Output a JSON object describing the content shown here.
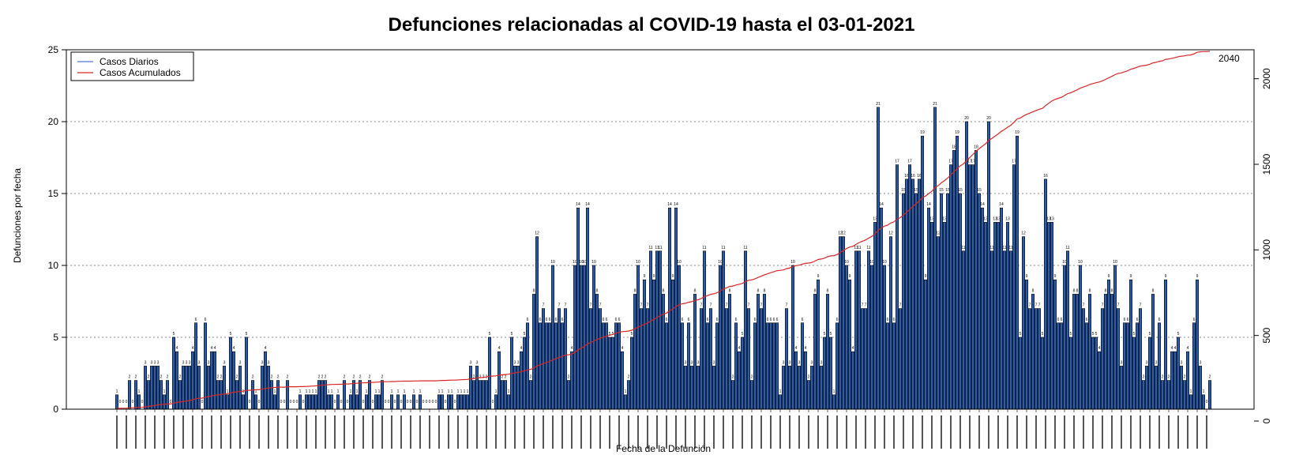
{
  "chart_data": {
    "type": "bar",
    "title": "Defunciones relacionadas al COVID-19 hasta el 03-01-2021",
    "xlabel": "Fecha de la Defunción",
    "ylabel": "Defunciones por fecha",
    "ylim": [
      0,
      25
    ],
    "yticks": [
      0,
      5,
      10,
      15,
      20,
      25
    ],
    "y2lim": [
      0,
      2100
    ],
    "y2ticks": [
      0,
      500,
      1000,
      1500,
      2000
    ],
    "grid": true,
    "legend": {
      "position": "top-left",
      "entries": [
        {
          "label": "Casos Diarios",
          "color": "#4f78d8"
        },
        {
          "label": "Casos Acumulados",
          "color": "#d62728"
        }
      ]
    },
    "cumulative_end_label": "2040",
    "x_labels_note": "dense tiny rotated date labels at every few bars",
    "series": [
      {
        "name": "Casos Diarios",
        "color": "#2d5ca8",
        "values": [
          1,
          0,
          0,
          0,
          2,
          0,
          2,
          1,
          0,
          3,
          2,
          3,
          3,
          3,
          2,
          1,
          2,
          0,
          5,
          4,
          2,
          3,
          3,
          3,
          4,
          6,
          3,
          0,
          6,
          3,
          4,
          4,
          2,
          2,
          3,
          1,
          5,
          4,
          2,
          3,
          1,
          5,
          0,
          2,
          1,
          0,
          3,
          4,
          3,
          2,
          1,
          2,
          0,
          0,
          2,
          0,
          0,
          0,
          1,
          0,
          1,
          1,
          1,
          1,
          2,
          2,
          2,
          1,
          1,
          0,
          1,
          0,
          2,
          0,
          1,
          2,
          1,
          2,
          0,
          1,
          2,
          0,
          1,
          1,
          2,
          0,
          0,
          1,
          0,
          1,
          0,
          1,
          0,
          0,
          1,
          0,
          1,
          0,
          0,
          0,
          0,
          0,
          1,
          1,
          0,
          1,
          1,
          0,
          1,
          1,
          1,
          1,
          3,
          2,
          3,
          2,
          2,
          2,
          5,
          0,
          1,
          4,
          2,
          2,
          1,
          5,
          3,
          3,
          4,
          5,
          6,
          2,
          8,
          12,
          6,
          7,
          6,
          6,
          10,
          6,
          7,
          6,
          7,
          2,
          4,
          10,
          14,
          10,
          10,
          14,
          7,
          10,
          8,
          7,
          6,
          6,
          5,
          5,
          6,
          6,
          4,
          1,
          2,
          5,
          8,
          10,
          7,
          9,
          7,
          11,
          9,
          11,
          11,
          8,
          6,
          14,
          9,
          14,
          10,
          6,
          3,
          6,
          3,
          8,
          3,
          7,
          11,
          6,
          7,
          3,
          6,
          10,
          11,
          7,
          8,
          2,
          6,
          4,
          5,
          11,
          7,
          2,
          6,
          8,
          7,
          8,
          6,
          6,
          6,
          6,
          1,
          3,
          7,
          3,
          10,
          4,
          3,
          6,
          4,
          2,
          3,
          8,
          9,
          3,
          5,
          8,
          5,
          1,
          6,
          12,
          12,
          10,
          9,
          4,
          11,
          11,
          7,
          7,
          11,
          10,
          13,
          21,
          14,
          10,
          6,
          12,
          6,
          17,
          7,
          15,
          16,
          17,
          16,
          15,
          16,
          19,
          9,
          14,
          13,
          21,
          12,
          15,
          13,
          15,
          17,
          18,
          19,
          15,
          11,
          20,
          17,
          17,
          18,
          15,
          14,
          13,
          20,
          11,
          13,
          13,
          14,
          11,
          13,
          11,
          17,
          19,
          5,
          12,
          9,
          7,
          8,
          7,
          7,
          5,
          16,
          13,
          13,
          9,
          6,
          6,
          10,
          11,
          5,
          8,
          8,
          10,
          7,
          6,
          8,
          5,
          5,
          4,
          7,
          8,
          9,
          8,
          10,
          7,
          3,
          6,
          6,
          9,
          5,
          6,
          7,
          2,
          3,
          5,
          8,
          3,
          6,
          2,
          9,
          2,
          4,
          4,
          5,
          3,
          2,
          4,
          1,
          6,
          9,
          3,
          1,
          0,
          2
        ]
      },
      {
        "name": "Casos Acumulados",
        "color": "#d62728",
        "type": "line",
        "axis": "right"
      }
    ]
  }
}
